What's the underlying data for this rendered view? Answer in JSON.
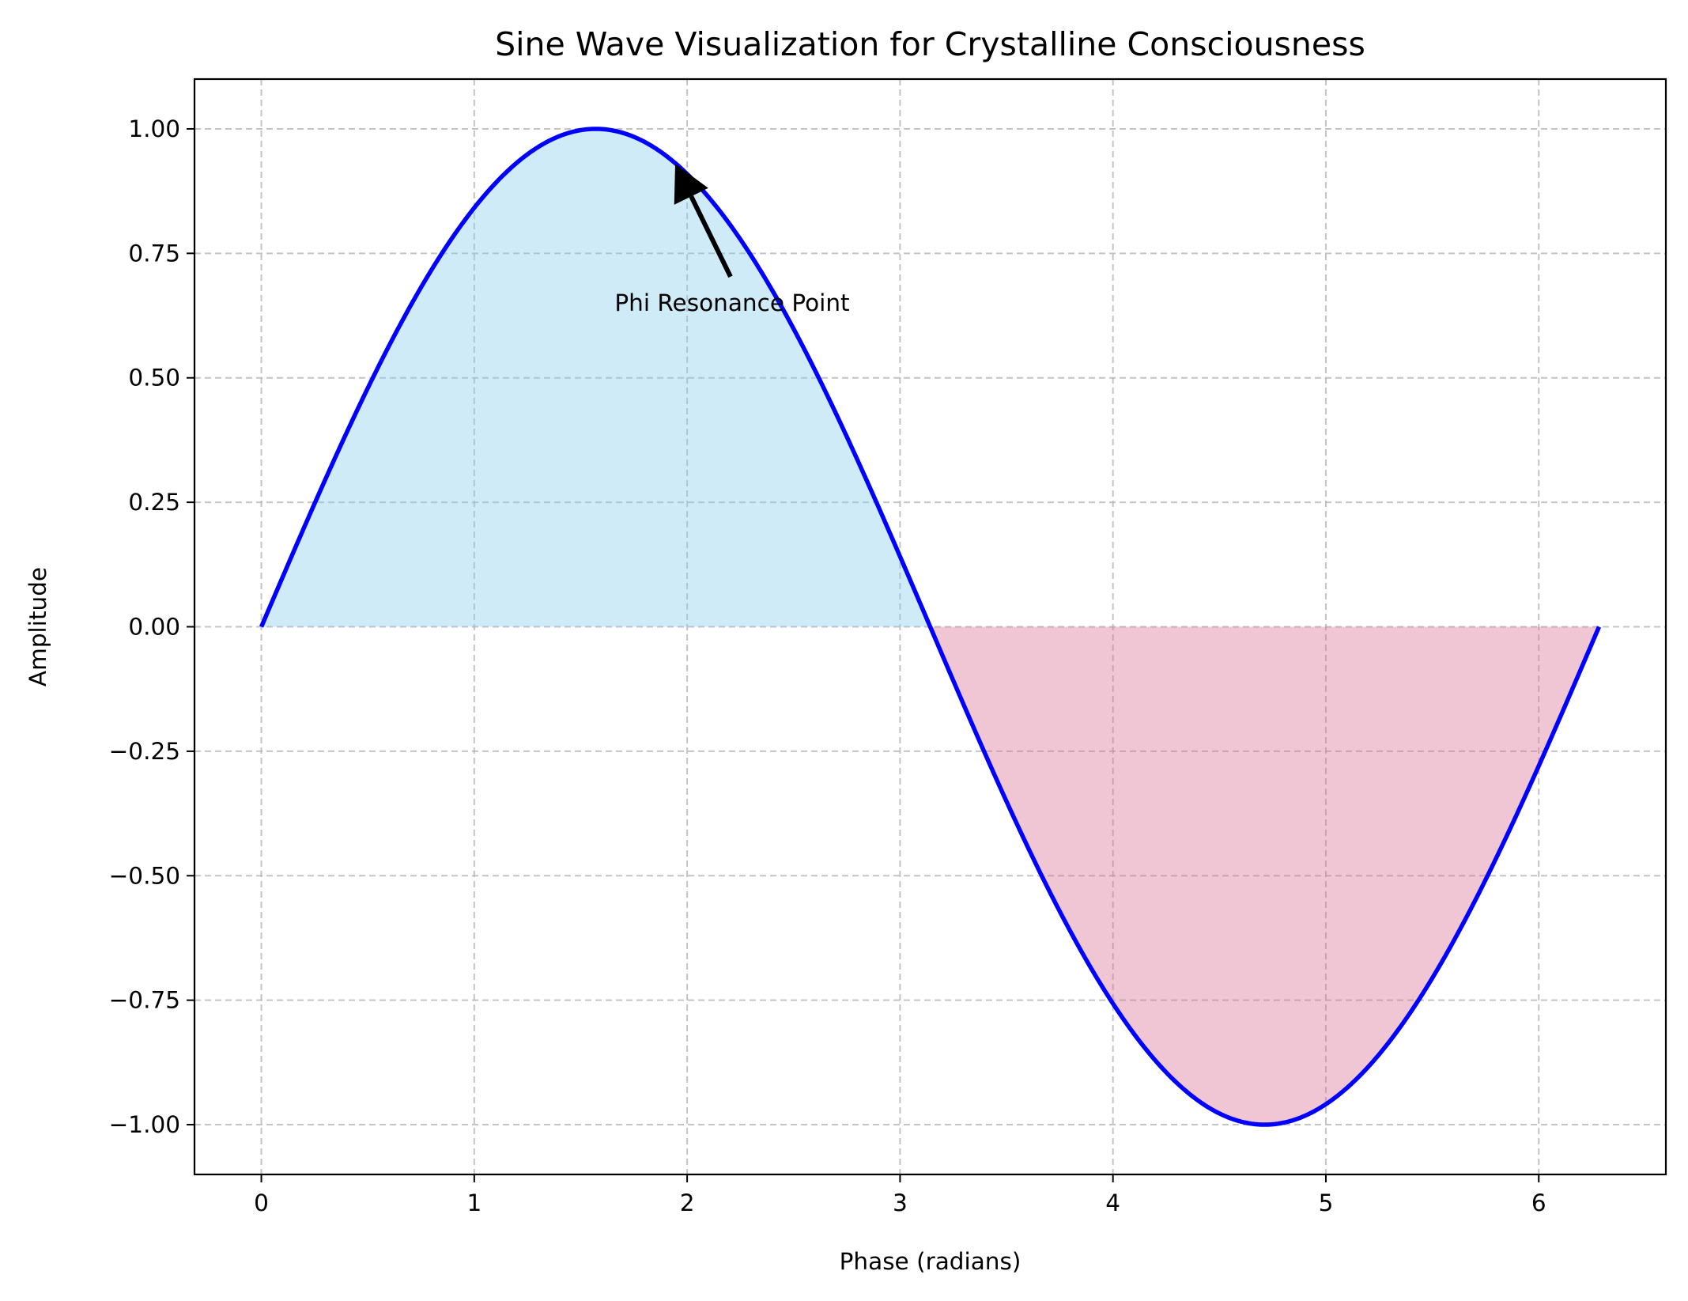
{
  "chart_data": {
    "type": "area",
    "title": "Sine Wave Visualization for Crystalline Consciousness",
    "xlabel": "Phase (radians)",
    "ylabel": "Amplitude",
    "xlim": [
      -0.314,
      6.597
    ],
    "ylim": [
      -1.1,
      1.1
    ],
    "xticks": [
      0,
      1,
      2,
      3,
      4,
      5,
      6
    ],
    "xtick_labels": [
      "0",
      "1",
      "2",
      "3",
      "4",
      "5",
      "6"
    ],
    "yticks": [
      1.0,
      0.75,
      0.5,
      0.25,
      0.0,
      -0.25,
      -0.5,
      -0.75,
      -1.0
    ],
    "ytick_labels": [
      "1.00",
      "0.75",
      "0.50",
      "0.25",
      "0.00",
      "−0.25",
      "−0.50",
      "−0.75",
      "−1.00"
    ],
    "grid": true,
    "series": [
      {
        "function": "sin(x)",
        "x_range": [
          0,
          6.2832
        ],
        "line_color": "#0000ff",
        "positive_fill_color": "#87ceeb",
        "negative_fill_color": "#db7093",
        "fill_opacity": 0.4
      }
    ],
    "annotations": [
      {
        "text": "Phi Resonance Point",
        "point": [
          1.944,
          0.93
        ],
        "text_position": [
          2.2,
          0.7
        ]
      }
    ]
  }
}
